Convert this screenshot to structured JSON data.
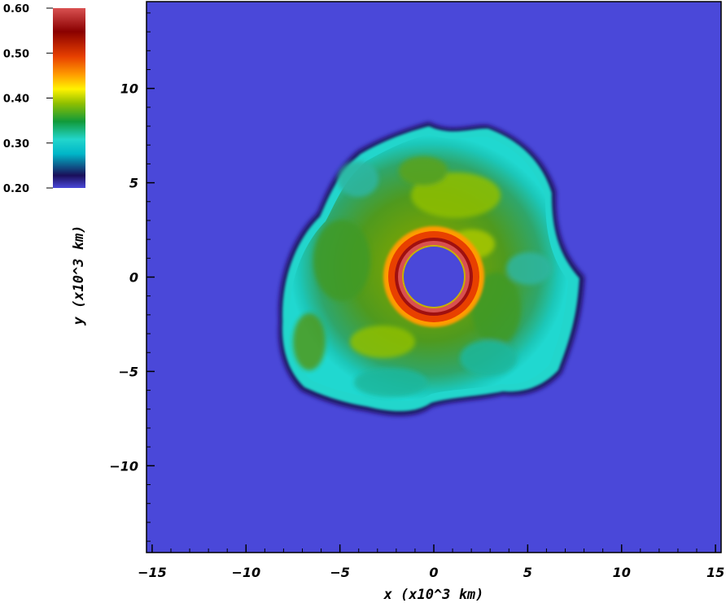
{
  "chart_data": {
    "type": "heatmap",
    "title": "",
    "xlabel": "x (x10^3 km)",
    "ylabel": "y (x10^3 km)",
    "xlim": [
      -15.3,
      15.3
    ],
    "ylim": [
      -14.6,
      14.6
    ],
    "xticks": [
      -15,
      -10,
      -5,
      0,
      5,
      10,
      15
    ],
    "xtick_labels": [
      "−15",
      "−10",
      "−5",
      "0",
      "5",
      "10",
      "15"
    ],
    "yticks": [
      -10,
      -5,
      0,
      5,
      10
    ],
    "ytick_labels": [
      "−10",
      "−5",
      "0",
      "5",
      "10"
    ],
    "colorbar": {
      "range": [
        0.2,
        0.6
      ],
      "ticks": [
        0.2,
        0.3,
        0.4,
        0.5,
        0.6
      ],
      "tick_labels": [
        "0.20",
        "0.30",
        "0.40",
        "0.50",
        "0.60"
      ],
      "placement": "top-left"
    },
    "colormap": [
      "#4a48d9",
      "#1a0f5a",
      "#00b6c8",
      "#22d6cc",
      "#119a3a",
      "#8fbf00",
      "#fff200",
      "#ff9c00",
      "#e84000",
      "#8a0000",
      "#d95050"
    ],
    "field": {
      "background_value": 0.2,
      "ejecta_outer_radius_approx": 7.5,
      "ejecta_value_range": [
        0.3,
        0.44
      ],
      "inner_shell_radii": [
        1.6,
        2.5
      ],
      "inner_shell_value_range": [
        0.48,
        0.6
      ],
      "central_hole_radius": 1.6,
      "central_hole_value": 0.2
    }
  }
}
